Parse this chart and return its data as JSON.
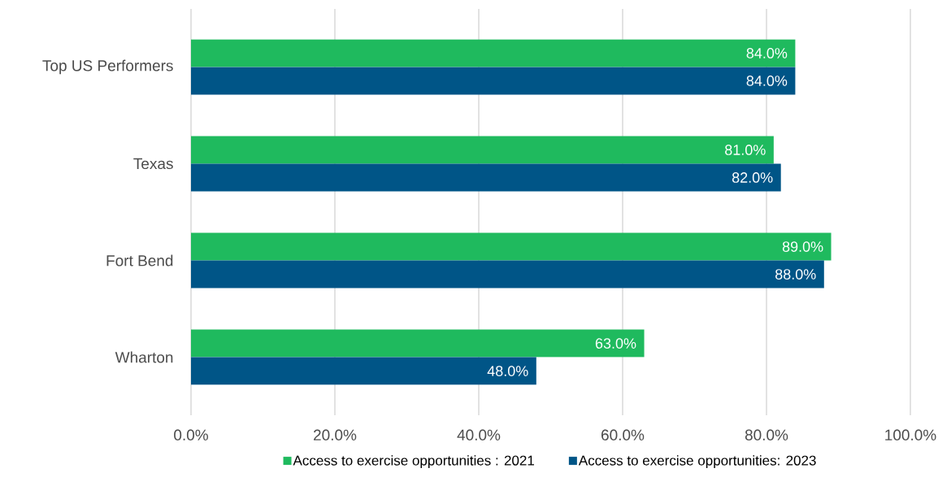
{
  "chart_data": {
    "type": "bar",
    "orientation": "horizontal",
    "categories": [
      "Top US Performers",
      "Texas",
      "Fort Bend",
      "Wharton"
    ],
    "series": [
      {
        "name": "Access to exercise opportunities : 2021",
        "color": "#1fba5e",
        "values": [
          84,
          81,
          89,
          63
        ],
        "value_labels": [
          "84.0%",
          "81.0%",
          "89.0%",
          "63.0%"
        ]
      },
      {
        "name": "Access to exercise opportunities: 2023",
        "color": "#005587",
        "values": [
          84,
          82,
          88,
          48
        ],
        "value_labels": [
          "84.0%",
          "82.0%",
          "88.0%",
          "48.0%"
        ]
      }
    ],
    "xlim": [
      0,
      100
    ],
    "xticks": [
      {
        "value": 0,
        "label": "0.0%"
      },
      {
        "value": 20,
        "label": "20.0%"
      },
      {
        "value": 40,
        "label": "40.0%"
      },
      {
        "value": 60,
        "label": "60.0%"
      },
      {
        "value": 80,
        "label": "80.0%"
      },
      {
        "value": 100,
        "label": "100.0%"
      }
    ],
    "grid": "x",
    "legend": "bottom"
  }
}
